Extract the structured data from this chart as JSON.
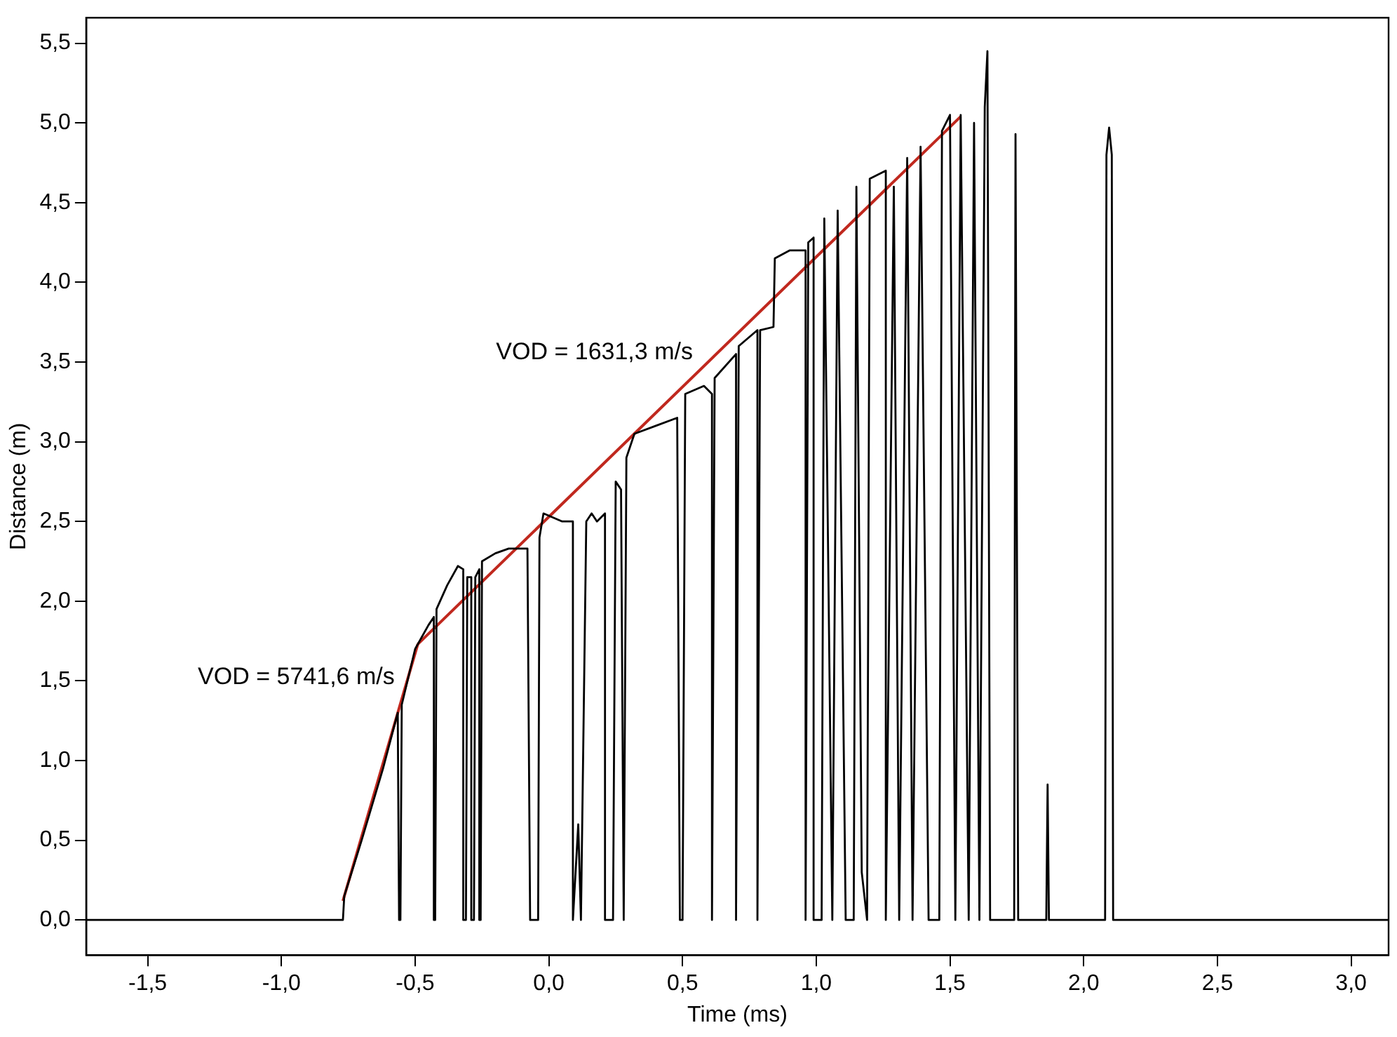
{
  "chart_data": {
    "type": "line",
    "xlabel": "Time (ms)",
    "ylabel": "Distance (m)",
    "xlim": [
      -1.73,
      3.14
    ],
    "ylim": [
      -0.22,
      5.66
    ],
    "xticks": [
      {
        "value": -1.5,
        "label": "-1,5"
      },
      {
        "value": -1,
        "label": "-1,0"
      },
      {
        "value": -0.5,
        "label": "-0,5"
      },
      {
        "value": 0,
        "label": "0,0"
      },
      {
        "value": 0.5,
        "label": "0,5"
      },
      {
        "value": 1,
        "label": "1,0"
      },
      {
        "value": 1.5,
        "label": "1,5"
      },
      {
        "value": 2,
        "label": "2,0"
      },
      {
        "value": 2.5,
        "label": "2,5"
      },
      {
        "value": 3,
        "label": "3,0"
      }
    ],
    "yticks": [
      {
        "value": 0,
        "label": "0,0"
      },
      {
        "value": 0.5,
        "label": "0,5"
      },
      {
        "value": 1,
        "label": "1,0"
      },
      {
        "value": 1.5,
        "label": "1,5"
      },
      {
        "value": 2,
        "label": "2,0"
      },
      {
        "value": 2.5,
        "label": "2,5"
      },
      {
        "value": 3,
        "label": "3,0"
      },
      {
        "value": 3.5,
        "label": "3,5"
      },
      {
        "value": 4,
        "label": "4,0"
      },
      {
        "value": 4.5,
        "label": "4,5"
      },
      {
        "value": 5,
        "label": "5,0"
      },
      {
        "value": 5.5,
        "label": "5,5"
      }
    ],
    "grid": false,
    "legend": false,
    "marker": "none",
    "line_style": "solid",
    "series": [
      {
        "color": "#000000",
        "x": [
          -1.73,
          -0.77,
          -0.765,
          -0.7,
          -0.62,
          -0.565,
          -0.56,
          -0.555,
          -0.55,
          -0.5,
          -0.45,
          -0.43,
          -0.43,
          -0.425,
          -0.42,
          -0.38,
          -0.34,
          -0.32,
          -0.32,
          -0.31,
          -0.305,
          -0.29,
          -0.29,
          -0.28,
          -0.275,
          -0.26,
          -0.26,
          -0.255,
          -0.25,
          -0.2,
          -0.15,
          -0.08,
          -0.07,
          -0.04,
          -0.035,
          -0.02,
          0.05,
          0.09,
          0.09,
          0.11,
          0.12,
          0.14,
          0.16,
          0.18,
          0.21,
          0.21,
          0.24,
          0.25,
          0.27,
          0.28,
          0.29,
          0.32,
          0.4,
          0.48,
          0.49,
          0.5,
          0.51,
          0.58,
          0.61,
          0.61,
          0.62,
          0.7,
          0.7,
          0.71,
          0.78,
          0.78,
          0.79,
          0.84,
          0.845,
          0.9,
          0.96,
          0.96,
          0.97,
          0.99,
          0.99,
          1.02,
          1.03,
          1.06,
          1.08,
          1.11,
          1.14,
          1.15,
          1.17,
          1.19,
          1.2,
          1.26,
          1.26,
          1.29,
          1.31,
          1.34,
          1.36,
          1.39,
          1.42,
          1.46,
          1.47,
          1.5,
          1.52,
          1.54,
          1.57,
          1.59,
          1.61,
          1.63,
          1.64,
          1.65,
          1.74,
          1.745,
          1.755,
          1.86,
          1.865,
          1.87,
          2.08,
          2.085,
          2.095,
          2.105,
          2.11,
          3.14
        ],
        "values": [
          0,
          0,
          0.15,
          0.5,
          0.95,
          1.3,
          0,
          0,
          1.35,
          1.7,
          1.85,
          1.9,
          0,
          0,
          1.95,
          2.1,
          2.22,
          2.2,
          0,
          0,
          2.15,
          2.15,
          0,
          0,
          2.15,
          2.2,
          0,
          0,
          2.25,
          2.3,
          2.33,
          2.33,
          0,
          0,
          2.4,
          2.55,
          2.5,
          2.5,
          0,
          0.6,
          0,
          2.5,
          2.55,
          2.5,
          2.55,
          0,
          0,
          2.75,
          2.7,
          0,
          2.9,
          3.05,
          3.1,
          3.15,
          0,
          0,
          3.3,
          3.35,
          3.3,
          0,
          3.4,
          3.55,
          0,
          3.6,
          3.7,
          0,
          3.7,
          3.72,
          4.15,
          4.2,
          4.2,
          0,
          4.25,
          4.28,
          0,
          0,
          4.4,
          0,
          4.45,
          0,
          0,
          4.6,
          0.3,
          0,
          4.65,
          4.7,
          0,
          4.6,
          0,
          4.78,
          0,
          4.85,
          0,
          0,
          4.95,
          5.05,
          0,
          5.05,
          0,
          5.0,
          0,
          5.1,
          5.45,
          0,
          0,
          4.93,
          0,
          0,
          0.85,
          0,
          0,
          4.8,
          4.97,
          4.8,
          0,
          0
        ]
      },
      {
        "type": "line",
        "color": "#c0281e",
        "x": [
          -0.77,
          -0.49
        ],
        "values": [
          0.12,
          1.73
        ]
      },
      {
        "type": "line",
        "color": "#c0281e",
        "x": [
          -0.49,
          1.54
        ],
        "values": [
          1.73,
          5.04
        ]
      }
    ],
    "annotations": [
      {
        "text": "VOD = 5741,6 m/s",
        "x": -0.545,
        "y": 1.41
      },
      {
        "text": "VOD = 1631,3 m/s",
        "x": 0.57,
        "y": 3.45
      }
    ]
  }
}
